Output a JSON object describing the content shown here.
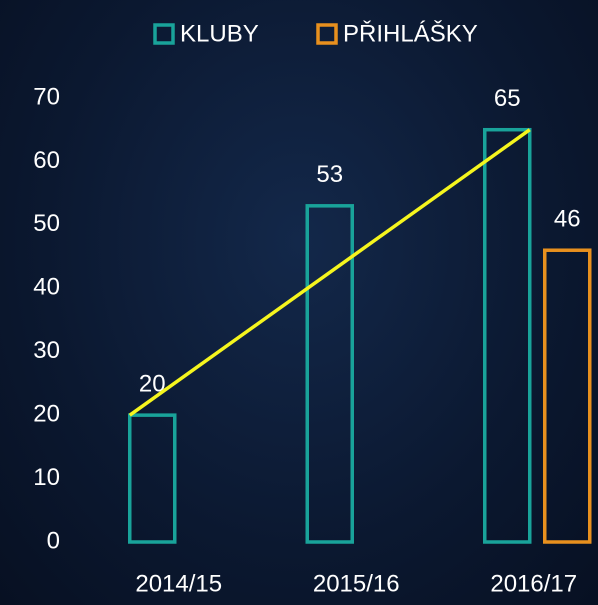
{
  "chart_data": {
    "type": "bar",
    "categories": [
      "2014/15",
      "2015/16",
      "2016/17"
    ],
    "series": [
      {
        "name": "KLUBY",
        "color": "#19a39a",
        "values": [
          20,
          53,
          65
        ]
      },
      {
        "name": "PŘIHLÁŠKY",
        "color": "#e8901e",
        "values": [
          null,
          null,
          46
        ]
      }
    ],
    "trend_color": "#f5f51e",
    "ylim": [
      0,
      70
    ],
    "yticks": [
      0,
      10,
      20,
      30,
      40,
      50,
      60,
      70
    ],
    "grid": false,
    "legend": "top"
  }
}
